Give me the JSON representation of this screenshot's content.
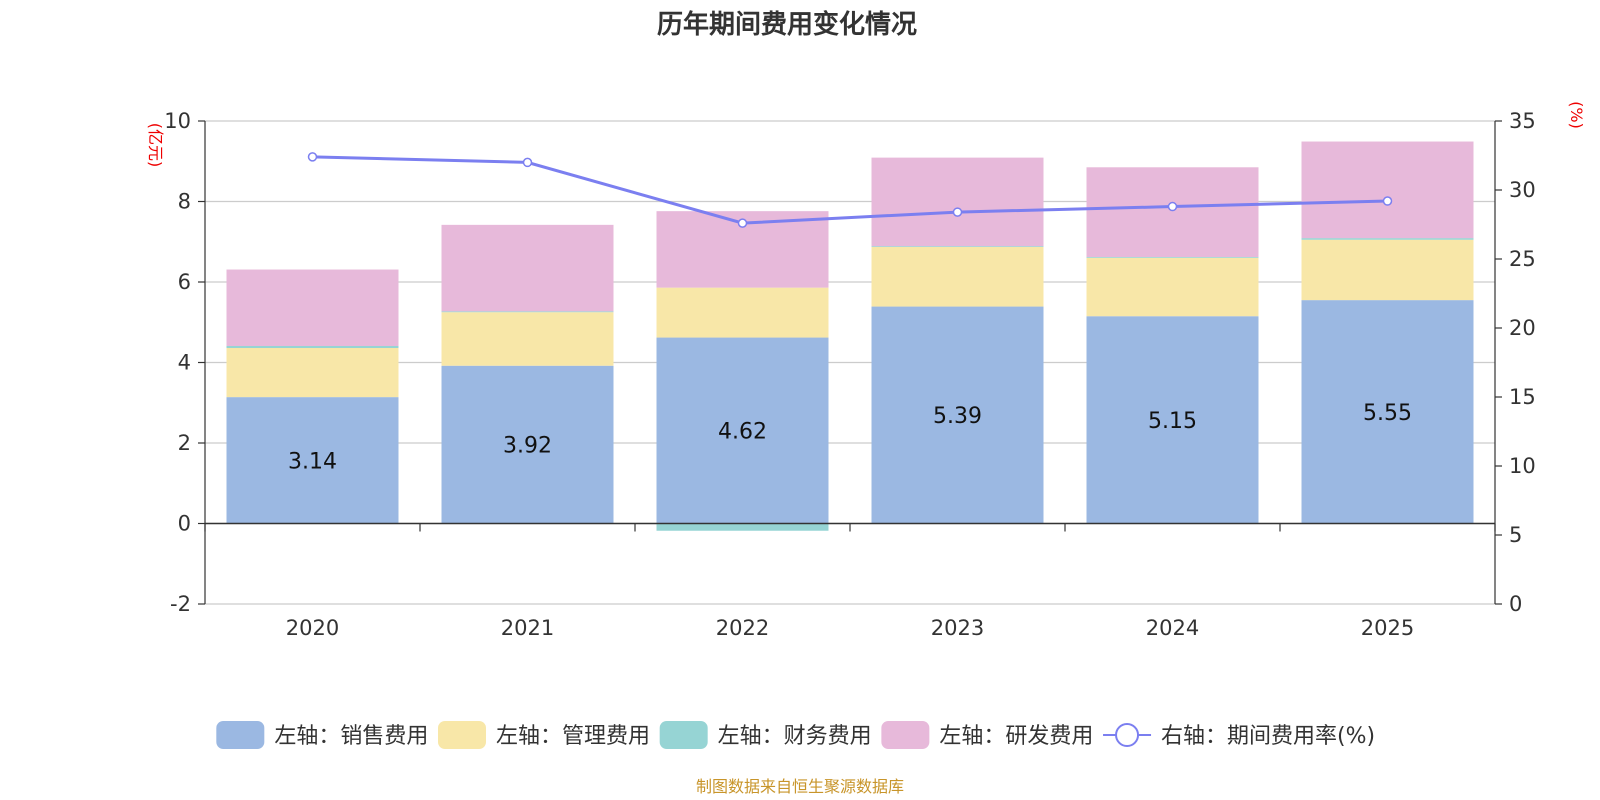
{
  "chart_data": {
    "type": "bar",
    "title": "历年期间费用变化情况",
    "categories": [
      "2020",
      "2021",
      "2022",
      "2023",
      "2024",
      "2025"
    ],
    "left_axis": {
      "unit": "(亿元)",
      "ylim": [
        -2,
        10
      ],
      "ticks": [
        -2,
        0,
        2,
        4,
        6,
        8,
        10
      ]
    },
    "right_axis": {
      "unit": "(%)",
      "ylim": [
        0,
        35
      ],
      "ticks": [
        0,
        5,
        10,
        15,
        20,
        25,
        30,
        35
      ]
    },
    "series": [
      {
        "name": "左轴：销售费用",
        "kind": "bar",
        "stack": "fee",
        "color": "#9bb8e2",
        "values": [
          3.14,
          3.92,
          4.62,
          5.39,
          5.15,
          5.55
        ],
        "labels": [
          "3.14",
          "3.92",
          "4.62",
          "5.39",
          "5.15",
          "5.55"
        ]
      },
      {
        "name": "左轴：管理费用",
        "kind": "bar",
        "stack": "fee",
        "color": "#f8e7a8",
        "values": [
          1.22,
          1.33,
          1.24,
          1.48,
          1.45,
          1.5
        ]
      },
      {
        "name": "左轴：财务费用",
        "kind": "bar",
        "stack": "fee",
        "color": "#96d4d4",
        "values": [
          0.05,
          0.02,
          -0.18,
          0.02,
          0.02,
          0.04
        ]
      },
      {
        "name": "左轴：研发费用",
        "kind": "bar",
        "stack": "fee",
        "color": "#e7b9da",
        "values": [
          1.9,
          2.15,
          1.9,
          2.2,
          2.23,
          2.4
        ]
      },
      {
        "name": "右轴：期间费用率(%)",
        "kind": "line",
        "axis": "right",
        "color": "#7b7ff0",
        "values": [
          32.4,
          32.0,
          27.6,
          28.4,
          28.8,
          29.2
        ]
      }
    ],
    "grid": true,
    "legend_position": "bottom"
  },
  "source_note": "制图数据来自恒生聚源数据库"
}
